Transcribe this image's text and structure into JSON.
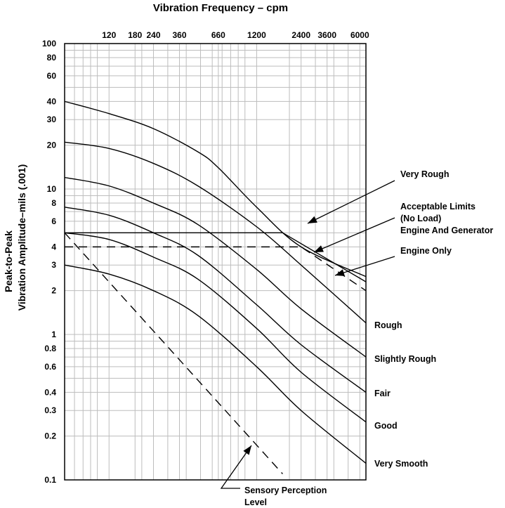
{
  "chart_data": {
    "type": "line",
    "title": "Vibration Frequency – cpm",
    "ylabel_line1": "Peak-to-Peak",
    "ylabel_line2": "Vibration Amplitude–mils (.001)",
    "x_scale": "log",
    "y_scale": "log",
    "xlim": [
      60,
      6600
    ],
    "ylim": [
      0.1,
      100
    ],
    "grid": true,
    "x_ticks": [
      {
        "value": 120,
        "label": "120"
      },
      {
        "value": 180,
        "label": "180"
      },
      {
        "value": 240,
        "label": "240"
      },
      {
        "value": 360,
        "label": "360"
      },
      {
        "value": 660,
        "label": "660"
      },
      {
        "value": 1200,
        "label": "1200"
      },
      {
        "value": 2400,
        "label": "2400"
      },
      {
        "value": 3600,
        "label": "3600"
      },
      {
        "value": 6000,
        "label": "6000"
      }
    ],
    "y_ticks": [
      {
        "value": 100,
        "label": "100"
      },
      {
        "value": 80,
        "label": "80"
      },
      {
        "value": 60,
        "label": "60"
      },
      {
        "value": 40,
        "label": "40"
      },
      {
        "value": 30,
        "label": "30"
      },
      {
        "value": 20,
        "label": "20"
      },
      {
        "value": 10,
        "label": "10"
      },
      {
        "value": 8,
        "label": "8"
      },
      {
        "value": 6,
        "label": "6"
      },
      {
        "value": 4,
        "label": "4"
      },
      {
        "value": 3,
        "label": "3"
      },
      {
        "value": 2,
        "label": "2"
      },
      {
        "value": 1,
        "label": "1"
      },
      {
        "value": 0.8,
        "label": "0.8"
      },
      {
        "value": 0.6,
        "label": "0.6"
      },
      {
        "value": 0.4,
        "label": "0.4"
      },
      {
        "value": 0.3,
        "label": "0.3"
      },
      {
        "value": 0.2,
        "label": "0.2"
      },
      {
        "value": 0.1,
        "label": "0.1"
      }
    ],
    "series": [
      {
        "name": "Very Rough",
        "style": "solid",
        "x": [
          60,
          120,
          240,
          480,
          660,
          1200,
          2400,
          6600
        ],
        "y": [
          40,
          33,
          26,
          18,
          14,
          7.5,
          4,
          2.5
        ]
      },
      {
        "name": "Rough",
        "style": "solid",
        "x": [
          60,
          120,
          240,
          480,
          1200,
          2400,
          6600
        ],
        "y": [
          21,
          19,
          15,
          10.5,
          5.5,
          3,
          1.2
        ]
      },
      {
        "name": "Slightly Rough",
        "style": "solid",
        "x": [
          60,
          120,
          240,
          480,
          1200,
          2400,
          6600
        ],
        "y": [
          12,
          10.5,
          8,
          5.7,
          2.8,
          1.5,
          0.7
        ]
      },
      {
        "name": "Fair",
        "style": "solid",
        "x": [
          60,
          120,
          240,
          480,
          1200,
          2400,
          6600
        ],
        "y": [
          7.5,
          6.6,
          5,
          3.5,
          1.6,
          0.85,
          0.4
        ]
      },
      {
        "name": "Good",
        "style": "solid",
        "x": [
          60,
          120,
          240,
          480,
          1200,
          2400,
          6600
        ],
        "y": [
          5,
          4.5,
          3.4,
          2.4,
          1.1,
          0.55,
          0.25
        ]
      },
      {
        "name": "Very Smooth",
        "style": "solid",
        "x": [
          60,
          120,
          240,
          480,
          1200,
          2400,
          6600
        ],
        "y": [
          3,
          2.6,
          2,
          1.35,
          0.6,
          0.3,
          0.13
        ]
      },
      {
        "name": "Acceptable Limits (No Load) Engine And Generator",
        "style": "solid",
        "x": [
          60,
          1800,
          6600
        ],
        "y": [
          5,
          5,
          2.3
        ]
      },
      {
        "name": "Engine Only",
        "style": "dashed",
        "x": [
          60,
          2400,
          6600
        ],
        "y": [
          4,
          4,
          2
        ]
      },
      {
        "name": "Sensory Perception Level",
        "style": "dashed",
        "x": [
          60,
          1800
        ],
        "y": [
          5,
          0.11
        ]
      }
    ],
    "annotations": [
      {
        "text": "Very Rough",
        "points_to": "Very Rough"
      },
      {
        "text": "Acceptable Limits",
        "points_to": "Acceptable Limits (No Load) Engine And Generator"
      },
      {
        "text": "(No Load)",
        "points_to": "Acceptable Limits (No Load) Engine And Generator"
      },
      {
        "text": "Engine And Generator",
        "points_to": "Acceptable Limits (No Load) Engine And Generator"
      },
      {
        "text": "Engine Only",
        "points_to": "Engine Only"
      },
      {
        "text": "Rough",
        "points_to": "Rough"
      },
      {
        "text": "Slightly Rough",
        "points_to": "Slightly Rough"
      },
      {
        "text": "Fair",
        "points_to": "Fair"
      },
      {
        "text": "Good",
        "points_to": "Good"
      },
      {
        "text": "Very Smooth",
        "points_to": "Very Smooth"
      },
      {
        "text": "Sensory Perception",
        "points_to": "Sensory Perception Level"
      },
      {
        "text": "Level",
        "points_to": "Sensory Perception Level"
      }
    ]
  }
}
